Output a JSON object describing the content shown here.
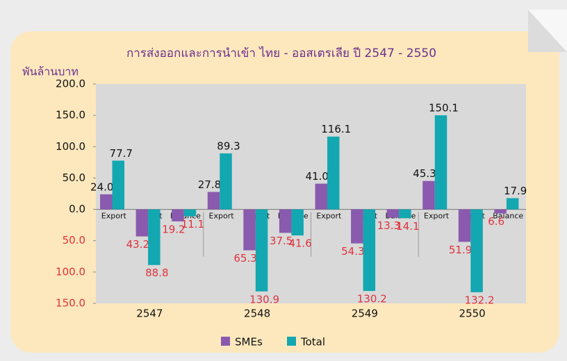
{
  "chart_data": {
    "type": "bar",
    "title": "การส่งออกและการนำเข้า ไทย - ออสเตรเลีย ปี 2547 - 2550",
    "y_label": "พันล้านบาท",
    "groups": [
      "2547",
      "2548",
      "2549",
      "2550"
    ],
    "categories": [
      "Export",
      "Import",
      "Balance",
      "Export",
      "Import",
      "Balance",
      "Export",
      "Import",
      "Balance",
      "Export",
      "Import",
      "Balance"
    ],
    "series": [
      {
        "name": "SMEs",
        "color": "#8a5aae",
        "values": [
          24,
          -43.2,
          -19.2,
          27.8,
          -65.3,
          -37.5,
          41,
          -54.3,
          -13.3,
          45.3,
          -51.9,
          -6.6
        ],
        "value_labels": [
          "24.0",
          "43.2",
          "19.2",
          "27.8",
          "65.3",
          "37.5",
          "41.0",
          "54.3",
          "13.3",
          "45.3",
          "51.9",
          "6.6"
        ]
      },
      {
        "name": "Total",
        "color": "#13a7b1",
        "values": [
          77.7,
          -88.8,
          -11.1,
          89.3,
          -130.9,
          -41.6,
          116.1,
          -130.2,
          -14.1,
          150.1,
          -132.2,
          17.9
        ],
        "value_labels": [
          "77.7",
          "88.8",
          "11.1",
          "89.3",
          "130.9",
          "41.6",
          "116.1",
          "130.2",
          "14.1",
          "150.1",
          "132.2",
          "17.9"
        ]
      }
    ],
    "ylim": [
      -150,
      200
    ],
    "yticks": [
      {
        "value": 200,
        "label": "200.0"
      },
      {
        "value": 150,
        "label": "150.0"
      },
      {
        "value": 100,
        "label": "100.0"
      },
      {
        "value": 50,
        "label": "50.0"
      },
      {
        "value": 0,
        "label": "0.0"
      },
      {
        "value": -50,
        "label": "50.0"
      },
      {
        "value": -100,
        "label": "100.0"
      },
      {
        "value": -150,
        "label": "150.0"
      }
    ],
    "legend": "bottom"
  }
}
